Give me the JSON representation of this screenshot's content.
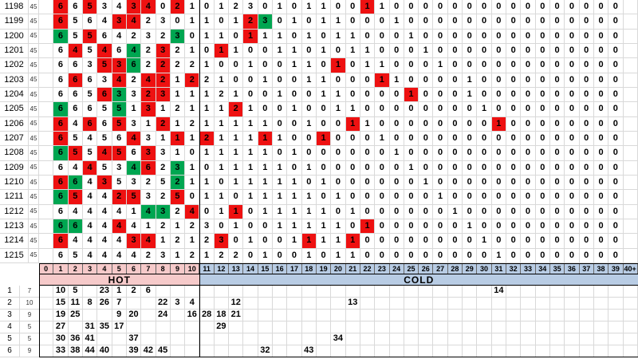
{
  "grid": {
    "pool_label": "45",
    "hot_label": "HOT",
    "cold_label": "COLD",
    "skip_headers": [
      "0",
      "1",
      "2",
      "3",
      "4",
      "5",
      "6",
      "7",
      "8",
      "9",
      "10",
      "11",
      "12",
      "13",
      "14",
      "15",
      "16",
      "17",
      "18",
      "19",
      "20",
      "21",
      "22",
      "23",
      "24",
      "25",
      "26",
      "27",
      "28",
      "29",
      "30",
      "31",
      "32",
      "33",
      "34",
      "35",
      "36",
      "37",
      "38",
      "39",
      "40+"
    ],
    "rows": [
      {
        "draw": "1198",
        "values": [
          "",
          6,
          6,
          5,
          3,
          4,
          3,
          4,
          0,
          2,
          1,
          0,
          1,
          2,
          3,
          0,
          1,
          0,
          1,
          1,
          0,
          0,
          1,
          1,
          0,
          0,
          0,
          0,
          0,
          0,
          0,
          0,
          0,
          0,
          0,
          0,
          0,
          0,
          0,
          0,
          ""
        ],
        "red": [
          1,
          3,
          6,
          7,
          9,
          22
        ],
        "green": []
      },
      {
        "draw": "1199",
        "values": [
          "",
          6,
          5,
          6,
          4,
          3,
          4,
          2,
          3,
          0,
          1,
          1,
          0,
          1,
          2,
          3,
          0,
          1,
          0,
          1,
          1,
          0,
          0,
          0,
          1,
          0,
          0,
          0,
          0,
          0,
          0,
          0,
          0,
          0,
          0,
          0,
          0,
          0,
          0,
          0,
          ""
        ],
        "red": [
          1,
          5,
          6,
          14
        ],
        "green": [
          15
        ]
      },
      {
        "draw": "1200",
        "values": [
          "",
          6,
          5,
          5,
          6,
          4,
          2,
          3,
          2,
          3,
          0,
          1,
          1,
          0,
          1,
          1,
          1,
          0,
          1,
          0,
          1,
          1,
          0,
          0,
          0,
          1,
          0,
          0,
          0,
          0,
          0,
          0,
          0,
          0,
          0,
          0,
          0,
          0,
          0,
          0,
          ""
        ],
        "red": [
          3,
          14
        ],
        "green": [
          1,
          9
        ]
      },
      {
        "draw": "1201",
        "values": [
          "",
          6,
          4,
          5,
          4,
          6,
          4,
          2,
          3,
          2,
          1,
          0,
          1,
          1,
          0,
          0,
          1,
          1,
          0,
          1,
          0,
          1,
          1,
          0,
          0,
          0,
          1,
          0,
          0,
          0,
          0,
          0,
          0,
          0,
          0,
          0,
          0,
          0,
          0,
          0,
          ""
        ],
        "red": [
          2,
          4,
          8,
          12
        ],
        "green": [
          6
        ]
      },
      {
        "draw": "1202",
        "values": [
          "",
          6,
          6,
          3,
          5,
          3,
          6,
          2,
          2,
          2,
          2,
          1,
          0,
          0,
          1,
          0,
          0,
          1,
          1,
          0,
          1,
          0,
          1,
          1,
          0,
          0,
          0,
          1,
          0,
          0,
          0,
          0,
          0,
          0,
          0,
          0,
          0,
          0,
          0,
          0,
          ""
        ],
        "red": [
          4,
          5,
          8,
          20
        ],
        "green": [
          6
        ]
      },
      {
        "draw": "1203",
        "values": [
          "",
          6,
          6,
          6,
          3,
          4,
          2,
          4,
          2,
          1,
          2,
          2,
          1,
          0,
          0,
          1,
          0,
          0,
          1,
          1,
          0,
          0,
          0,
          1,
          1,
          0,
          0,
          0,
          0,
          1,
          0,
          0,
          0,
          0,
          0,
          0,
          0,
          0,
          0,
          0,
          ""
        ],
        "red": [
          2,
          5,
          7,
          8,
          10,
          23
        ],
        "green": []
      },
      {
        "draw": "1204",
        "values": [
          "",
          6,
          6,
          5,
          6,
          3,
          3,
          2,
          3,
          1,
          1,
          1,
          2,
          1,
          0,
          0,
          1,
          0,
          0,
          1,
          1,
          0,
          0,
          0,
          0,
          1,
          0,
          0,
          0,
          1,
          0,
          0,
          0,
          0,
          0,
          0,
          0,
          0,
          0,
          0,
          ""
        ],
        "red": [
          4,
          7,
          8,
          25
        ],
        "green": [
          5
        ]
      },
      {
        "draw": "1205",
        "values": [
          "",
          6,
          6,
          6,
          5,
          5,
          1,
          3,
          1,
          2,
          1,
          1,
          1,
          2,
          1,
          0,
          0,
          1,
          0,
          0,
          1,
          1,
          0,
          0,
          0,
          0,
          0,
          0,
          0,
          0,
          1,
          0,
          0,
          0,
          0,
          0,
          0,
          0,
          0,
          0,
          ""
        ],
        "red": [
          7,
          13
        ],
        "green": [
          1,
          5
        ]
      },
      {
        "draw": "1206",
        "values": [
          "",
          6,
          4,
          6,
          6,
          5,
          3,
          1,
          2,
          1,
          2,
          1,
          1,
          1,
          1,
          1,
          0,
          0,
          1,
          0,
          0,
          1,
          1,
          0,
          0,
          0,
          0,
          0,
          0,
          0,
          0,
          1,
          0,
          0,
          0,
          0,
          0,
          0,
          0,
          0,
          ""
        ],
        "red": [
          1,
          3,
          5,
          8,
          21,
          31
        ],
        "green": []
      },
      {
        "draw": "1207",
        "values": [
          "",
          6,
          5,
          4,
          5,
          6,
          4,
          3,
          1,
          1,
          1,
          2,
          1,
          1,
          1,
          1,
          1,
          0,
          0,
          1,
          0,
          0,
          0,
          1,
          0,
          0,
          0,
          0,
          0,
          0,
          0,
          0,
          0,
          0,
          0,
          0,
          0,
          0,
          0,
          0,
          ""
        ],
        "red": [
          1,
          6,
          9,
          11,
          15,
          19
        ],
        "green": []
      },
      {
        "draw": "1208",
        "values": [
          "",
          6,
          5,
          5,
          4,
          5,
          6,
          3,
          3,
          1,
          0,
          1,
          1,
          1,
          1,
          1,
          0,
          1,
          0,
          0,
          0,
          0,
          0,
          0,
          1,
          0,
          0,
          0,
          0,
          0,
          0,
          0,
          0,
          0,
          0,
          0,
          0,
          0,
          0,
          0,
          ""
        ],
        "red": [
          2,
          4,
          5,
          7
        ],
        "green": [
          1
        ]
      },
      {
        "draw": "1209",
        "values": [
          "",
          6,
          4,
          4,
          5,
          3,
          4,
          6,
          2,
          3,
          1,
          0,
          1,
          1,
          1,
          1,
          1,
          0,
          1,
          0,
          0,
          0,
          0,
          0,
          0,
          1,
          0,
          0,
          0,
          0,
          0,
          0,
          0,
          0,
          0,
          0,
          0,
          0,
          0,
          0,
          ""
        ],
        "red": [
          3,
          7
        ],
        "green": [
          6,
          9
        ]
      },
      {
        "draw": "1210",
        "values": [
          "",
          6,
          6,
          4,
          3,
          5,
          3,
          2,
          5,
          2,
          1,
          1,
          0,
          1,
          1,
          1,
          1,
          1,
          0,
          1,
          0,
          0,
          0,
          0,
          0,
          0,
          1,
          0,
          0,
          0,
          0,
          0,
          0,
          0,
          0,
          0,
          0,
          0,
          0,
          0,
          ""
        ],
        "red": [
          1,
          4
        ],
        "green": [
          2,
          9
        ]
      },
      {
        "draw": "1211",
        "values": [
          "",
          6,
          5,
          4,
          4,
          2,
          5,
          3,
          2,
          5,
          0,
          1,
          1,
          0,
          1,
          1,
          1,
          1,
          1,
          0,
          1,
          0,
          0,
          0,
          0,
          0,
          0,
          1,
          0,
          0,
          0,
          0,
          0,
          0,
          0,
          0,
          0,
          0,
          0,
          0,
          ""
        ],
        "red": [
          2,
          5,
          6,
          9
        ],
        "green": [
          1
        ]
      },
      {
        "draw": "1212",
        "values": [
          "",
          6,
          4,
          4,
          4,
          4,
          1,
          4,
          3,
          2,
          4,
          0,
          1,
          1,
          0,
          1,
          1,
          1,
          1,
          1,
          0,
          1,
          0,
          0,
          0,
          0,
          0,
          0,
          1,
          0,
          0,
          0,
          0,
          0,
          0,
          0,
          0,
          0,
          0,
          0,
          ""
        ],
        "red": [
          10,
          13
        ],
        "green": [
          7,
          8
        ]
      },
      {
        "draw": "1213",
        "values": [
          "",
          6,
          6,
          4,
          4,
          4,
          4,
          1,
          2,
          1,
          2,
          3,
          0,
          1,
          0,
          0,
          1,
          1,
          1,
          1,
          1,
          0,
          1,
          0,
          0,
          0,
          0,
          0,
          0,
          1,
          0,
          0,
          0,
          0,
          0,
          0,
          0,
          0,
          0,
          0,
          ""
        ],
        "red": [
          5,
          22
        ],
        "green": [
          1,
          2
        ]
      },
      {
        "draw": "1214",
        "values": [
          "",
          6,
          4,
          4,
          4,
          4,
          3,
          4,
          1,
          2,
          1,
          2,
          3,
          0,
          1,
          0,
          0,
          1,
          1,
          1,
          1,
          1,
          0,
          0,
          0,
          0,
          0,
          0,
          0,
          0,
          1,
          0,
          0,
          0,
          0,
          0,
          0,
          0,
          0,
          0,
          ""
        ],
        "red": [
          1,
          6,
          7,
          12,
          18,
          21
        ],
        "green": []
      },
      {
        "draw": "1215",
        "values": [
          "",
          6,
          5,
          4,
          4,
          4,
          4,
          2,
          3,
          1,
          2,
          1,
          2,
          2,
          0,
          1,
          0,
          0,
          1,
          0,
          1,
          1,
          0,
          0,
          0,
          0,
          0,
          0,
          0,
          0,
          0,
          1,
          0,
          0,
          0,
          0,
          0,
          0,
          0,
          0,
          ""
        ],
        "red": [],
        "green": []
      }
    ]
  },
  "summary": {
    "rows": [
      {
        "label": "1",
        "count": "7",
        "values": [
          "",
          10,
          5,
          "",
          23,
          1,
          2,
          6,
          "",
          "",
          "",
          "",
          "",
          "",
          "",
          "",
          "",
          "",
          "",
          "",
          "",
          "",
          "",
          "",
          "",
          "",
          "",
          "",
          "",
          "",
          "",
          14,
          "",
          "",
          "",
          "",
          "",
          "",
          "",
          "",
          ""
        ]
      },
      {
        "label": "2",
        "count": "10",
        "values": [
          "",
          15,
          11,
          8,
          26,
          7,
          "",
          "",
          22,
          3,
          4,
          "",
          "",
          12,
          "",
          "",
          "",
          "",
          "",
          "",
          "",
          13,
          "",
          "",
          "",
          "",
          "",
          "",
          "",
          "",
          "",
          "",
          "",
          "",
          "",
          "",
          "",
          "",
          "",
          "",
          ""
        ]
      },
      {
        "label": "3",
        "count": "9",
        "values": [
          "",
          19,
          25,
          "",
          "",
          9,
          20,
          "",
          24,
          "",
          16,
          28,
          18,
          21,
          "",
          "",
          "",
          "",
          "",
          "",
          "",
          "",
          "",
          "",
          "",
          "",
          "",
          "",
          "",
          "",
          "",
          "",
          "",
          "",
          "",
          "",
          "",
          "",
          "",
          "",
          ""
        ]
      },
      {
        "label": "4",
        "count": "5",
        "values": [
          "",
          27,
          "",
          31,
          35,
          17,
          "",
          "",
          "",
          "",
          "",
          "",
          29,
          "",
          "",
          "",
          "",
          "",
          "",
          "",
          "",
          "",
          "",
          "",
          "",
          "",
          "",
          "",
          "",
          "",
          "",
          "",
          "",
          "",
          "",
          "",
          "",
          "",
          "",
          "",
          ""
        ]
      },
      {
        "label": "5",
        "count": "5",
        "values": [
          "",
          30,
          36,
          41,
          "",
          "",
          37,
          "",
          "",
          "",
          "",
          "",
          "",
          "",
          "",
          "",
          "",
          "",
          "",
          "",
          34,
          "",
          "",
          "",
          "",
          "",
          "",
          "",
          "",
          "",
          "",
          "",
          "",
          "",
          "",
          "",
          "",
          "",
          "",
          "",
          ""
        ]
      },
      {
        "label": "6",
        "count": "9",
        "values": [
          "",
          33,
          38,
          44,
          40,
          "",
          39,
          42,
          45,
          "",
          "",
          "",
          "",
          "",
          "",
          32,
          "",
          "",
          43,
          "",
          "",
          "",
          "",
          "",
          "",
          "",
          "",
          "",
          "",
          "",
          "",
          "",
          "",
          "",
          "",
          "",
          "",
          "",
          "",
          "",
          ""
        ]
      }
    ]
  },
  "colors": {
    "hit_one": "#ee1111",
    "hit_two": "#00a651",
    "hot_bg": "#f6caca",
    "cold_bg": "#b8cce4",
    "gridline": "#d9d9d9"
  }
}
